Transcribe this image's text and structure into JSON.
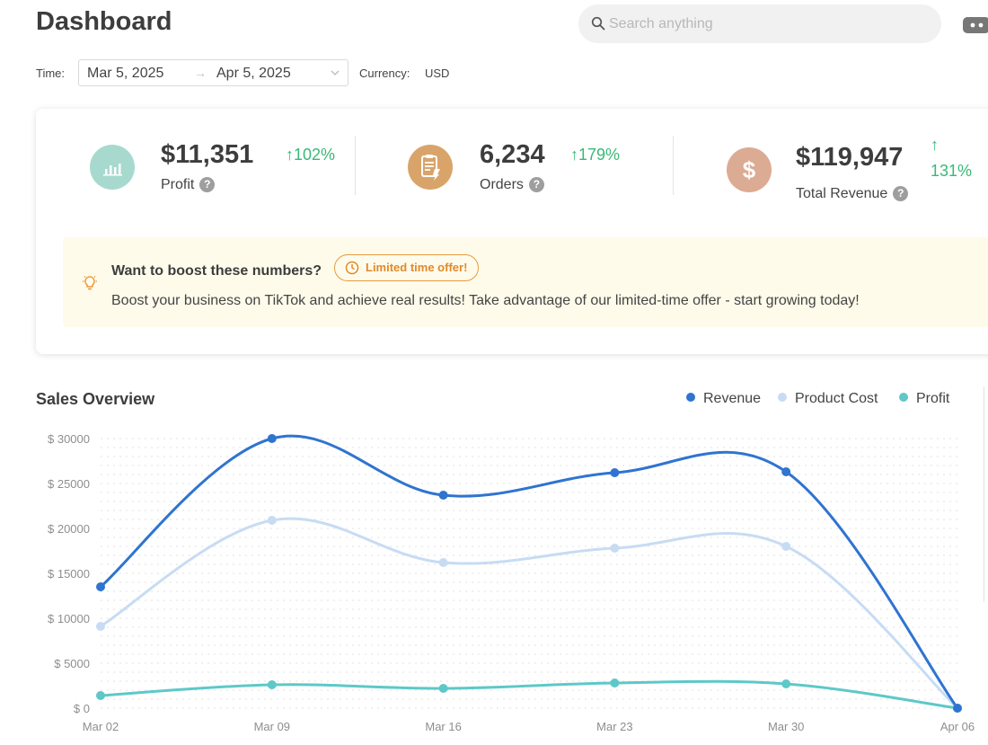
{
  "header": {
    "title": "Dashboard",
    "search": {
      "placeholder": "Search anything",
      "value": ""
    }
  },
  "filters": {
    "time_label": "Time:",
    "start_date": "Mar 5, 2025",
    "range_arrow": "→",
    "end_date": "Apr 5, 2025",
    "currency_label": "Currency:",
    "currency_value": "USD"
  },
  "kpis": [
    {
      "value": "$11,351",
      "change": "↑102%",
      "label": "Profit",
      "color": "#a7d9cf",
      "icon": "bar-chart-icon"
    },
    {
      "value": "6,234",
      "change": "↑179%",
      "label": "Orders",
      "color": "#d9a46a",
      "icon": "clipboard-icon"
    },
    {
      "value": "$119,947",
      "change_arrow": "↑",
      "change": "131%",
      "label": "Total Revenue",
      "color": "#dcab93",
      "icon": "dollar-icon"
    }
  ],
  "promo": {
    "title": "Want to boost these numbers?",
    "badge": "Limited time offer!",
    "body": "Boost your business on TikTok and achieve real results! Take advantage of our limited-time offer - start growing today!",
    "accent": "#e08a2a"
  },
  "sales": {
    "title": "Sales Overview"
  },
  "chart_data": {
    "type": "line",
    "title": "Sales Overview",
    "categories": [
      "Mar 02",
      "Mar 09",
      "Mar 16",
      "Mar 23",
      "Mar 30",
      "Apr 06"
    ],
    "y_ticks": [
      "$ 30000",
      "$ 25000",
      "$ 20000",
      "$ 15000",
      "$ 10000",
      "$ 5000",
      "$ 0"
    ],
    "ylim": [
      0,
      30000
    ],
    "grid": true,
    "legend_position": "top-right",
    "series": [
      {
        "name": "Revenue",
        "color": "#2f74d0",
        "values": [
          13500,
          30000,
          23700,
          26200,
          26300,
          0
        ]
      },
      {
        "name": "Product Cost",
        "color": "#c7dcf3",
        "values": [
          9100,
          20900,
          16200,
          17800,
          18000,
          0
        ]
      },
      {
        "name": "Profit",
        "color": "#5ec8c8",
        "values": [
          1400,
          2600,
          2200,
          2800,
          2700,
          0
        ]
      }
    ]
  }
}
